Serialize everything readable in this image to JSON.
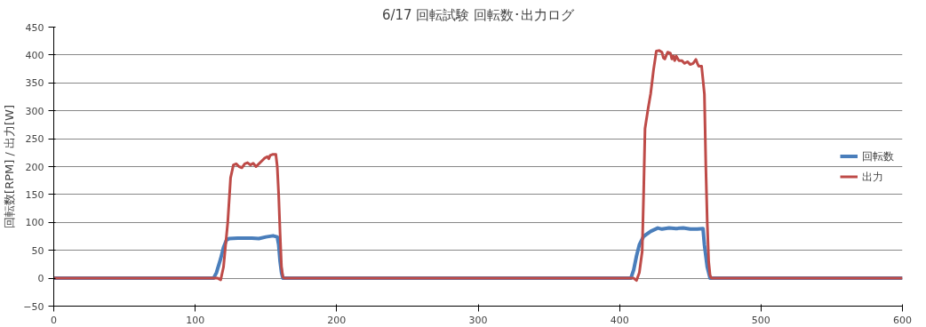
{
  "chart_data": {
    "type": "line",
    "title": "6/17 回転試験 回転数･出力ログ",
    "ylabel": "回転数[RPM] / 出力[W]",
    "xlim": [
      0,
      600
    ],
    "xticks": [
      0,
      100,
      200,
      300,
      400,
      500,
      600
    ],
    "ylim": [
      -50,
      450
    ],
    "yticks": [
      -50,
      0,
      50,
      100,
      150,
      200,
      250,
      300,
      350,
      400,
      450
    ],
    "grid": "y",
    "legend": "right",
    "marker": "none",
    "line_style": "solid",
    "series": [
      {
        "name": "回転数",
        "color": "#4a7ebb",
        "x": [
          0,
          113,
          115,
          118,
          120,
          122,
          124,
          130,
          140,
          145,
          150,
          155,
          158,
          159,
          160,
          161,
          162,
          408,
          410,
          412,
          414,
          417,
          422,
          427,
          430,
          435,
          440,
          445,
          450,
          455,
          459,
          460,
          462,
          464,
          600
        ],
        "values": [
          0,
          0,
          10,
          35,
          55,
          68,
          71,
          72,
          72,
          71,
          74,
          76,
          74,
          60,
          30,
          10,
          0,
          0,
          15,
          40,
          60,
          75,
          84,
          90,
          88,
          90,
          89,
          90,
          88,
          88,
          89,
          60,
          20,
          0,
          0
        ]
      },
      {
        "name": "出力",
        "color": "#be4b48",
        "x": [
          0,
          116,
          118,
          120,
          123,
          125,
          127,
          129,
          131,
          133,
          135,
          137,
          139,
          141,
          143,
          145,
          147,
          149,
          151,
          152,
          153,
          155,
          157,
          158,
          159,
          160,
          161,
          162,
          163,
          410,
          412,
          414,
          416,
          417,
          418,
          420,
          422,
          424,
          425,
          426,
          428,
          430,
          431,
          432,
          434,
          436,
          437,
          438,
          439,
          440,
          442,
          444,
          446,
          448,
          450,
          452,
          454,
          455,
          456,
          458,
          460,
          461,
          462,
          463,
          464,
          465,
          600
        ],
        "values": [
          0,
          0,
          -3,
          20,
          100,
          180,
          203,
          205,
          200,
          198,
          205,
          207,
          203,
          206,
          200,
          205,
          210,
          215,
          218,
          214,
          220,
          222,
          222,
          200,
          150,
          80,
          20,
          2,
          0,
          0,
          -4,
          10,
          48,
          150,
          268,
          301,
          331,
          373,
          390,
          407,
          408,
          405,
          395,
          393,
          405,
          403,
          393,
          398,
          390,
          398,
          390,
          390,
          385,
          388,
          383,
          385,
          392,
          385,
          380,
          380,
          330,
          200,
          100,
          30,
          5,
          0,
          0
        ]
      }
    ]
  }
}
